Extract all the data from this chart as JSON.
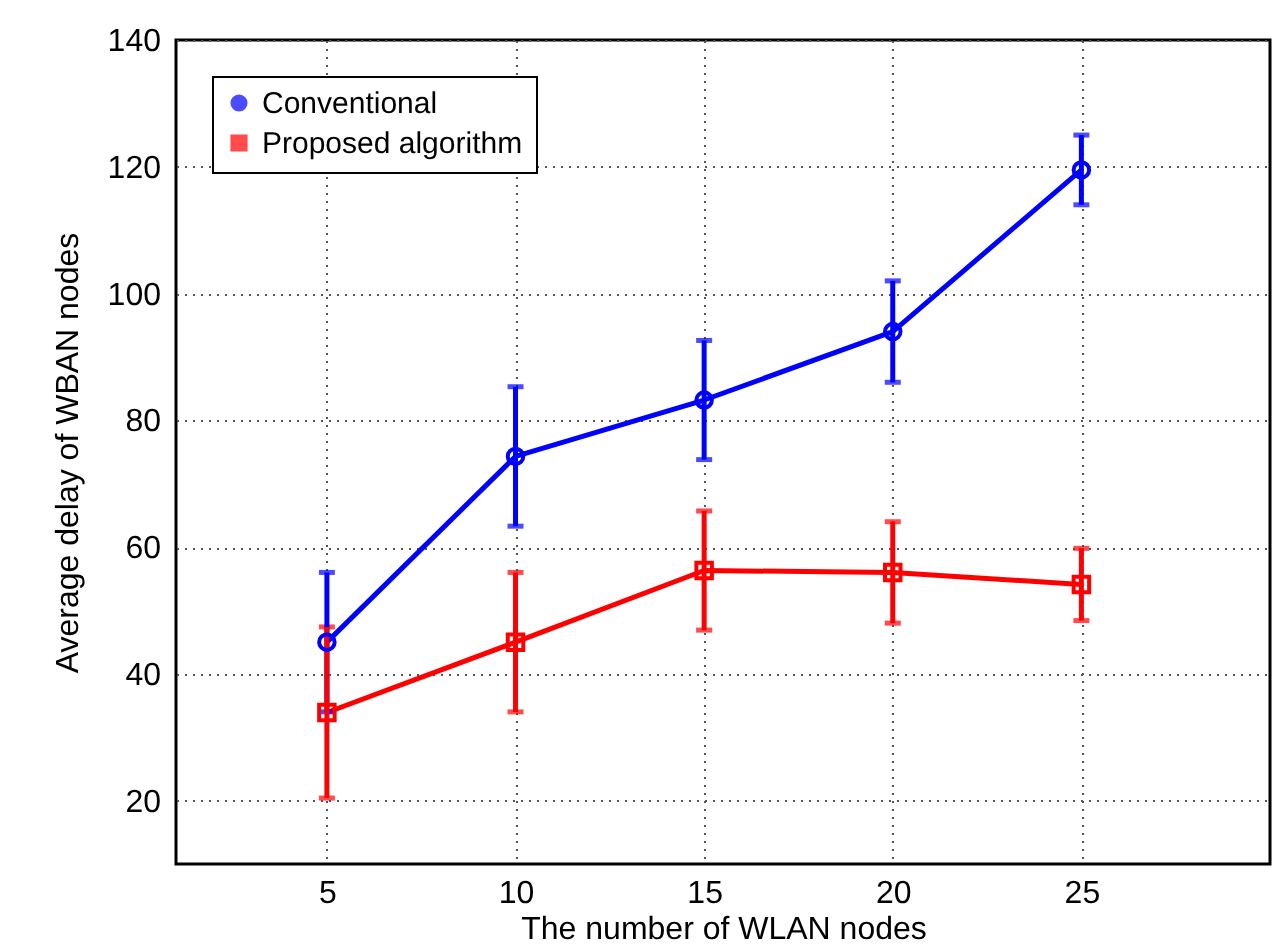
{
  "chart_data": {
    "type": "line",
    "xlabel": "The number of WLAN nodes",
    "ylabel": "Average delay of WBAN nodes",
    "x": [
      5,
      10,
      15,
      20,
      25
    ],
    "series": [
      {
        "name": "Conventional",
        "color": "#0000ff",
        "marker": "circle",
        "values": [
          45,
          74.3,
          83.2,
          94,
          119.5
        ],
        "errors": [
          11,
          11,
          9.4,
          8,
          5.5
        ]
      },
      {
        "name": "Proposed algorithm",
        "color": "#ff0000",
        "marker": "square",
        "values": [
          33.9,
          45,
          56.3,
          56,
          54.1
        ],
        "errors": [
          13.5,
          11,
          9.4,
          8,
          5.7
        ]
      }
    ],
    "xlim": [
      1,
      30
    ],
    "xticks": [
      5,
      10,
      15,
      20,
      25
    ],
    "ylim": [
      10,
      140
    ],
    "yticks": [
      20,
      40,
      60,
      80,
      100,
      120,
      140
    ],
    "grid": true,
    "legend": "top left",
    "line_style": "solid"
  }
}
